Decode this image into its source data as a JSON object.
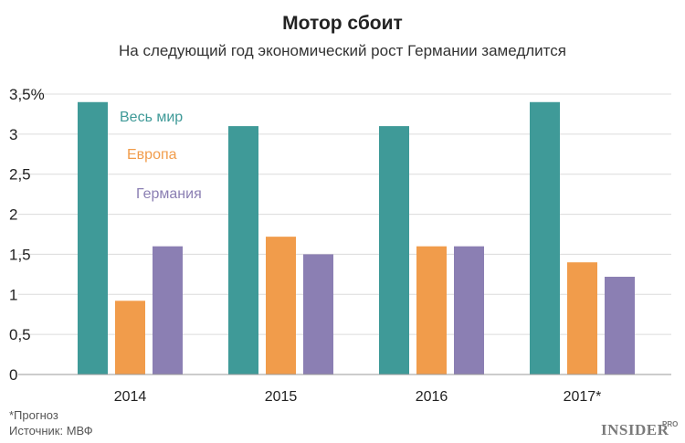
{
  "chart_data": {
    "type": "bar",
    "title": "Мотор сбоит",
    "subtitle": "На следующий год экономический рост Германии замедлится",
    "categories": [
      "2014",
      "2015",
      "2016",
      "2017*"
    ],
    "series": [
      {
        "name": "Весь мир",
        "color": "#3f9a98",
        "values": [
          3.4,
          3.1,
          3.1,
          3.4
        ]
      },
      {
        "name": "Европа",
        "color": "#f19c4b",
        "values": [
          0.92,
          1.72,
          1.6,
          1.4
        ]
      },
      {
        "name": "Германия",
        "color": "#8b7fb3",
        "values": [
          1.6,
          1.5,
          1.6,
          1.22
        ]
      }
    ],
    "ylim": [
      0,
      3.5
    ],
    "yticks": [
      {
        "value": 0,
        "label": "0"
      },
      {
        "value": 0.5,
        "label": "0,5"
      },
      {
        "value": 1,
        "label": "1"
      },
      {
        "value": 1.5,
        "label": "1,5"
      },
      {
        "value": 2,
        "label": "2"
      },
      {
        "value": 2.5,
        "label": "2,5"
      },
      {
        "value": 3,
        "label": "3"
      },
      {
        "value": 3.5,
        "label": "3,5%"
      }
    ],
    "grid": true,
    "legend_position": "inside-top-left"
  },
  "footnote": "*Прогноз",
  "source": "Источник: МВФ",
  "logo": {
    "main": "INSIDER",
    "sub": "PRO"
  }
}
